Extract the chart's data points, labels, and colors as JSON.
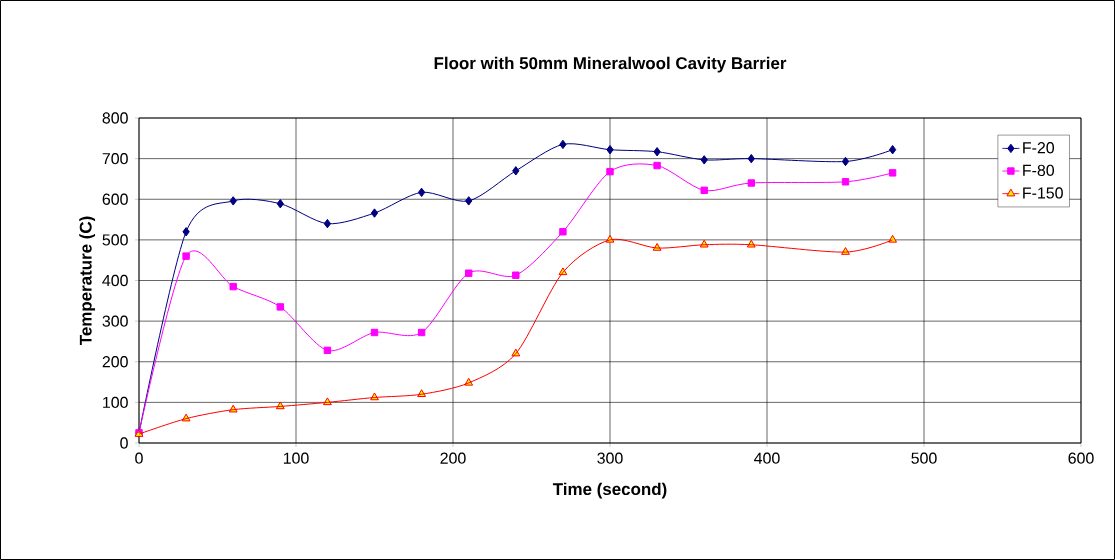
{
  "chart_data": {
    "type": "line",
    "title": "Floor with 50mm Mineralwool Cavity Barrier",
    "xlabel": "Time (second)",
    "ylabel": "Temperature (C)",
    "x": [
      0,
      30,
      60,
      90,
      120,
      150,
      180,
      210,
      240,
      270,
      300,
      330,
      360,
      390,
      450,
      480
    ],
    "series": [
      {
        "name": "F-20",
        "color": "#000080",
        "marker": "diamond",
        "values": [
          25,
          520,
          596,
          589,
          540,
          566,
          617,
          596,
          670,
          735,
          722,
          717,
          697,
          700,
          693,
          722
        ]
      },
      {
        "name": "F-80",
        "color": "#ff00ff",
        "marker": "square",
        "values": [
          25,
          460,
          385,
          335,
          228,
          272,
          272,
          418,
          413,
          520,
          668,
          683,
          622,
          640,
          643,
          665
        ]
      },
      {
        "name": "F-150",
        "color": "#ff0000",
        "marker": "triangle",
        "values": [
          22,
          60,
          82,
          90,
          100,
          112,
          120,
          148,
          220,
          420,
          500,
          480,
          488,
          488,
          470,
          500
        ]
      }
    ],
    "xlim": [
      0,
      600
    ],
    "ylim": [
      0,
      800
    ],
    "xticks": [
      0,
      100,
      200,
      300,
      400,
      500,
      600
    ],
    "yticks": [
      0,
      100,
      200,
      300,
      400,
      500,
      600,
      700,
      800
    ],
    "grid": true,
    "legend": "top right"
  }
}
